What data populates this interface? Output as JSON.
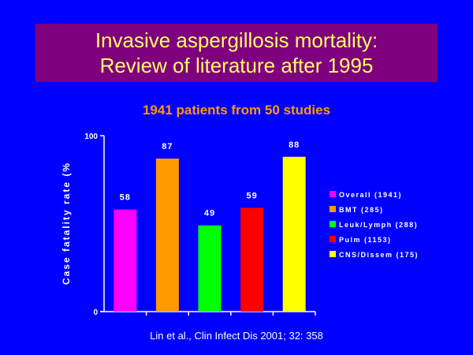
{
  "slide": {
    "title_line1": "Invasive aspergillosis mortality:",
    "title_line2": "Review of literature after 1995",
    "subtitle": "1941 patients from 50 studies",
    "citation": "Lin et al., Clin Infect Dis 2001; 32: 358",
    "background_color": "#0000ff",
    "title_bg_color": "#7f007f",
    "title_text_color": "#ffff66",
    "subtitle_color": "#ff9900"
  },
  "chart_data": {
    "type": "bar",
    "ylabel": "Case fatality rate (%",
    "ylim": [
      0,
      100
    ],
    "yticks": [
      "0",
      "100"
    ],
    "categories": [
      "Overall (1941)",
      "BMT (285)",
      "Leuk/Lymph (288)",
      "Pulm (1153)",
      "CNS/Dissem (175)"
    ],
    "values": [
      58,
      87,
      49,
      59,
      88
    ],
    "value_labels": [
      "58",
      "87",
      "49",
      "59",
      "88"
    ],
    "colors": [
      "#ff00ff",
      "#ff9900",
      "#00ff00",
      "#ff0000",
      "#ffff00"
    ],
    "legend": [
      {
        "label": "Overall (1941)",
        "color": "#ff00ff"
      },
      {
        "label": "BMT (285)",
        "color": "#ff9900"
      },
      {
        "label": "Leuk/Lymph (288)",
        "color": "#00ff00"
      },
      {
        "label": "Pulm (1153)",
        "color": "#ff0000"
      },
      {
        "label": "CNS/Dissem (175)",
        "color": "#ffff00"
      }
    ],
    "legend_position": "right",
    "grid": false
  }
}
